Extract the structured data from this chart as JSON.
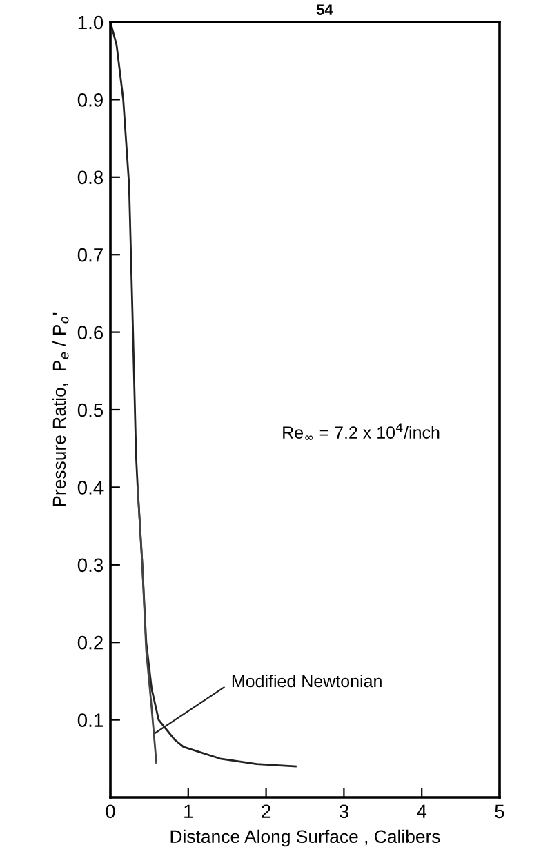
{
  "chart_data": {
    "type": "line",
    "xlabel": "Distance Along Surface , Calibers",
    "ylabel": "Pressure Ratio,  P$_{e}$ / P$_{o}$'",
    "xlim": [
      0,
      5
    ],
    "ylim": [
      0,
      1.0
    ],
    "xticks": [
      0,
      1,
      2,
      3,
      4,
      5
    ],
    "yticks": [
      {
        "value": 0.1,
        "label": "0.1"
      },
      {
        "value": 0.2,
        "label": "0.2"
      },
      {
        "value": 0.3,
        "label": "0.3"
      },
      {
        "value": 0.4,
        "label": "0.4"
      },
      {
        "value": 0.5,
        "label": "0.5"
      },
      {
        "value": 0.6,
        "label": "0.6"
      },
      {
        "value": 0.7,
        "label": "0.7"
      },
      {
        "value": 0.8,
        "label": "0.8"
      },
      {
        "value": 0.9,
        "label": "0.9"
      },
      {
        "value": 1.0,
        "label": "1.0"
      }
    ],
    "grid": false,
    "legend": false,
    "marker": "none",
    "line_style": "solid",
    "series": [
      {
        "color": "#222222",
        "x": [
          0,
          0.08,
          0.165,
          0.24,
          0.29,
          0.33,
          0.35,
          0.41,
          0.46,
          0.53,
          0.62,
          0.82,
          0.94,
          1.41,
          1.88,
          2.38
        ],
        "values": [
          1.0,
          0.97,
          0.9,
          0.79,
          0.6,
          0.44,
          0.4,
          0.3,
          0.2,
          0.14,
          0.1,
          0.075,
          0.065,
          0.05,
          0.043,
          0.04
        ]
      },
      {
        "color": "#444444",
        "x": [
          0.35,
          0.41,
          0.46,
          0.53,
          0.59
        ],
        "values": [
          0.4,
          0.3,
          0.19,
          0.115,
          0.045
        ]
      }
    ],
    "annotations": [
      "54",
      "Re$_{∞}$ = 7.2 x 10$^{4}$/inch",
      {
        "text": "Modified Newtonian",
        "x": 0.53,
        "y": 0.08
      }
    ]
  }
}
